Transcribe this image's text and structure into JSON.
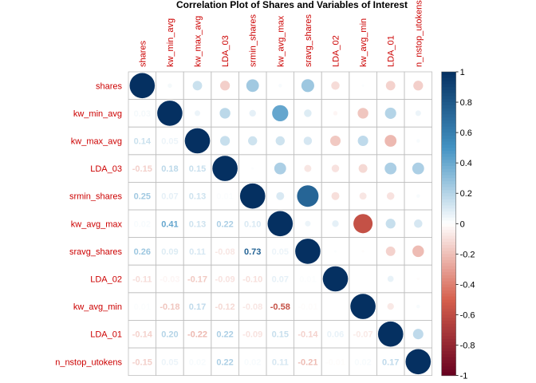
{
  "chart_data": {
    "type": "heatmap",
    "title": "Correlation Plot of Shares and Variables of Interest",
    "variables": [
      "shares",
      "kw_min_avg",
      "kw_max_avg",
      "LDA_03",
      "srmin_shares",
      "kw_avg_max",
      "sravg_shares",
      "LDA_02",
      "kw_avg_min",
      "LDA_01",
      "n_nstop_utokens"
    ],
    "matrix": [
      [
        1.0,
        0.03,
        0.14,
        -0.15,
        0.25,
        0.02,
        0.26,
        -0.11,
        0.01,
        -0.14,
        -0.15
      ],
      [
        0.03,
        1.0,
        0.05,
        0.18,
        0.07,
        0.41,
        0.09,
        -0.03,
        -0.18,
        0.2,
        0.05
      ],
      [
        0.14,
        0.05,
        1.0,
        0.15,
        0.13,
        0.13,
        0.11,
        -0.17,
        0.17,
        -0.22,
        0.02
      ],
      [
        -0.15,
        0.18,
        0.15,
        1.0,
        0.01,
        0.22,
        -0.08,
        -0.09,
        -0.12,
        0.22,
        0.22
      ],
      [
        0.25,
        0.07,
        0.13,
        0.01,
        1.0,
        0.1,
        0.73,
        -0.1,
        -0.08,
        -0.09,
        0.02
      ],
      [
        0.02,
        0.41,
        0.13,
        0.22,
        0.1,
        1.0,
        0.05,
        0.07,
        -0.58,
        0.15,
        0.11
      ],
      [
        0.26,
        0.09,
        0.11,
        -0.08,
        0.73,
        0.05,
        1.0,
        0.01,
        -0.01,
        -0.14,
        -0.21
      ],
      [
        -0.11,
        -0.03,
        -0.17,
        -0.09,
        -0.1,
        0.07,
        0.01,
        1.0,
        0.0,
        0.06,
        -0.01
      ],
      [
        0.01,
        -0.18,
        0.17,
        -0.12,
        -0.08,
        -0.58,
        -0.01,
        0.0,
        1.0,
        -0.07,
        0.02
      ],
      [
        -0.14,
        0.2,
        -0.22,
        0.22,
        -0.09,
        0.15,
        -0.14,
        0.06,
        -0.07,
        1.0,
        0.17
      ],
      [
        -0.15,
        0.05,
        0.02,
        0.22,
        0.02,
        0.11,
        -0.21,
        -0.01,
        0.02,
        0.17,
        1.0
      ]
    ],
    "colorbar": {
      "range": [
        -1,
        1
      ],
      "ticks": [
        "-1",
        "-0.8",
        "-0.6",
        "-0.4",
        "-0.2",
        "0",
        "0.2",
        "0.4",
        "0.6",
        "0.8",
        "1"
      ]
    },
    "colors": {
      "negative_end": "#67001f",
      "negative_mid": "#d6604d",
      "neutral": "#ffffff",
      "positive_mid": "#4393c3",
      "positive_end": "#053061",
      "label_color": "#cc0000",
      "grid_color": "#bfbfbf"
    },
    "upper_triangle": "circles",
    "lower_triangle": "numbers",
    "legend": "right"
  }
}
